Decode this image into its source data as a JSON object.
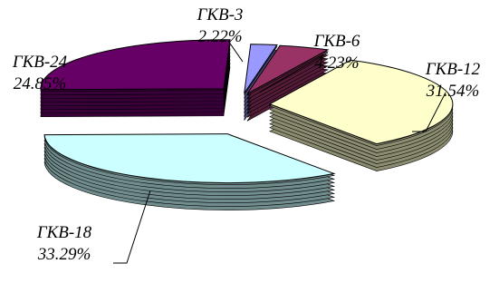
{
  "chart_data": {
    "type": "pie",
    "style": "3d-exploded",
    "title": "",
    "legend": "none",
    "slices": [
      {
        "label": "ГКВ-3",
        "percent_label": "2.22%",
        "value": 2.22,
        "color": "#9999ff"
      },
      {
        "label": "ГКВ-6",
        "percent_label": "4.23%",
        "value": 4.23,
        "color": "#993366"
      },
      {
        "label": "ГКВ-12",
        "percent_label": "31.54%",
        "value": 31.54,
        "color": "#ffffcc"
      },
      {
        "label": "ГКВ-18",
        "percent_label": "33.29%",
        "value": 33.29,
        "color": "#ccffff"
      },
      {
        "label": "ГКВ-24",
        "percent_label": "24.85%",
        "value": 24.85,
        "color": "#660066"
      }
    ]
  }
}
